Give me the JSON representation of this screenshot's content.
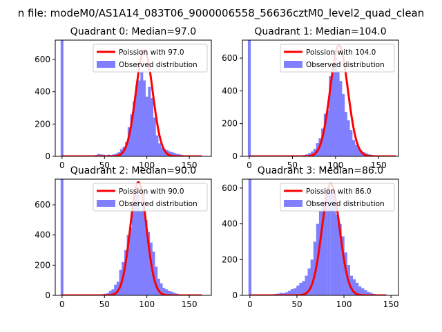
{
  "suptitle": "n file: modeM0/AS1A14_083T06_9000006558_56636cztM0_level2_quad_clean",
  "colors": {
    "fit": "#ff0000",
    "hist": "#8080ff",
    "axis": "#000000"
  },
  "chart_data": [
    {
      "type": "bar",
      "title": "Quadrant 0: Median=97.0",
      "median": 97.0,
      "xlim": [
        -8,
        176
      ],
      "ylim": [
        0,
        720
      ],
      "xticks": [
        0,
        50,
        100,
        150
      ],
      "yticks": [
        0,
        200,
        400,
        600
      ],
      "legend": [
        "Poission with 97.0",
        "Observed distribution"
      ],
      "legend_position": "top-right",
      "fit": {
        "mean": 97,
        "sigma": 9.9,
        "peak": 660,
        "x_range": [
          0,
          165
        ]
      },
      "hist": {
        "bin_width": 3.3,
        "spike": {
          "x": 0,
          "value": 720
        },
        "x": [
          40,
          43,
          46,
          49,
          52,
          55,
          58,
          61,
          64,
          67,
          70,
          73,
          76,
          79,
          82,
          85,
          88,
          91,
          94,
          97,
          100,
          103,
          106,
          109,
          112,
          115,
          118,
          121,
          124,
          127,
          130,
          133,
          136,
          139,
          142,
          145,
          148,
          151
        ],
        "values": [
          8,
          15,
          12,
          10,
          7,
          10,
          8,
          12,
          18,
          25,
          45,
          60,
          90,
          180,
          260,
          340,
          440,
          470,
          520,
          470,
          370,
          430,
          360,
          240,
          130,
          80,
          55,
          45,
          38,
          30,
          25,
          20,
          15,
          12,
          8,
          6,
          4,
          3
        ]
      }
    },
    {
      "type": "bar",
      "title": "Quadrant 1: Median=104.0",
      "median": 104.0,
      "xlim": [
        -8,
        173
      ],
      "ylim": [
        0,
        710
      ],
      "xticks": [
        0,
        50,
        100,
        150
      ],
      "yticks": [
        0,
        200,
        400,
        600
      ],
      "legend": [
        "Poission with 104.0",
        "Observed distribution"
      ],
      "legend_position": "top-right",
      "fit": {
        "mean": 104,
        "sigma": 10.2,
        "peak": 680,
        "x_range": [
          0,
          170
        ]
      },
      "hist": {
        "bin_width": 3.3,
        "spike": {
          "x": 0,
          "value": 710
        },
        "x": [
          58,
          61,
          64,
          67,
          70,
          73,
          76,
          79,
          82,
          85,
          88,
          91,
          94,
          97,
          100,
          103,
          106,
          109,
          112,
          115,
          118,
          121,
          124,
          127,
          130,
          133,
          136,
          139,
          142,
          145,
          148,
          151
        ],
        "values": [
          4,
          6,
          8,
          12,
          20,
          30,
          45,
          80,
          110,
          170,
          260,
          280,
          490,
          510,
          600,
          520,
          460,
          380,
          270,
          220,
          160,
          100,
          70,
          50,
          35,
          25,
          18,
          12,
          9,
          6,
          4,
          2
        ]
      }
    },
    {
      "type": "bar",
      "title": "Quadrant 2: Median=90.0",
      "median": 90.0,
      "xlim": [
        -8,
        176
      ],
      "ylim": [
        0,
        770
      ],
      "xticks": [
        0,
        50,
        100,
        150
      ],
      "yticks": [
        0,
        200,
        400,
        600
      ],
      "legend": [
        "Poission with 90.0",
        "Observed distribution"
      ],
      "legend_position": "top-right",
      "fit": {
        "mean": 90,
        "sigma": 9.5,
        "peak": 750,
        "x_range": [
          0,
          165
        ]
      },
      "hist": {
        "bin_width": 3.3,
        "spike": {
          "x": 0,
          "value": 770
        },
        "x": [
          45,
          48,
          51,
          54,
          57,
          60,
          63,
          66,
          69,
          72,
          75,
          78,
          81,
          84,
          87,
          90,
          93,
          96,
          99,
          102,
          105,
          108,
          111,
          114,
          117,
          120,
          123,
          126,
          129,
          132,
          135,
          138,
          141
        ],
        "values": [
          5,
          8,
          10,
          15,
          30,
          40,
          70,
          90,
          170,
          220,
          300,
          400,
          450,
          620,
          700,
          670,
          560,
          680,
          500,
          420,
          350,
          290,
          190,
          110,
          80,
          50,
          40,
          30,
          25,
          18,
          12,
          8,
          5
        ]
      }
    },
    {
      "type": "bar",
      "title": "Quadrant 3: Median=86.0",
      "median": 86.0,
      "xlim": [
        -8,
        158
      ],
      "ylim": [
        0,
        650
      ],
      "xticks": [
        0,
        50,
        100,
        150
      ],
      "yticks": [
        0,
        200,
        400,
        600
      ],
      "legend": [
        "Poission with 86.0",
        "Observed distribution"
      ],
      "legend_position": "top-right",
      "fit": {
        "mean": 86,
        "sigma": 9.3,
        "peak": 625,
        "x_range": [
          0,
          145
        ]
      },
      "hist": {
        "bin_width": 3.1,
        "spike": {
          "x": 0,
          "value": 650
        },
        "x": [
          24,
          27,
          30,
          33,
          36,
          39,
          42,
          45,
          48,
          51,
          54,
          57,
          60,
          63,
          66,
          69,
          72,
          75,
          78,
          81,
          84,
          87,
          90,
          93,
          96,
          99,
          102,
          105,
          108,
          111,
          114,
          117,
          120,
          123,
          126,
          129,
          132
        ],
        "values": [
          6,
          8,
          10,
          14,
          12,
          18,
          25,
          35,
          40,
          55,
          70,
          80,
          110,
          150,
          200,
          300,
          400,
          470,
          530,
          590,
          600,
          580,
          560,
          450,
          400,
          330,
          240,
          170,
          110,
          90,
          70,
          50,
          40,
          30,
          20,
          14,
          8
        ]
      }
    }
  ]
}
